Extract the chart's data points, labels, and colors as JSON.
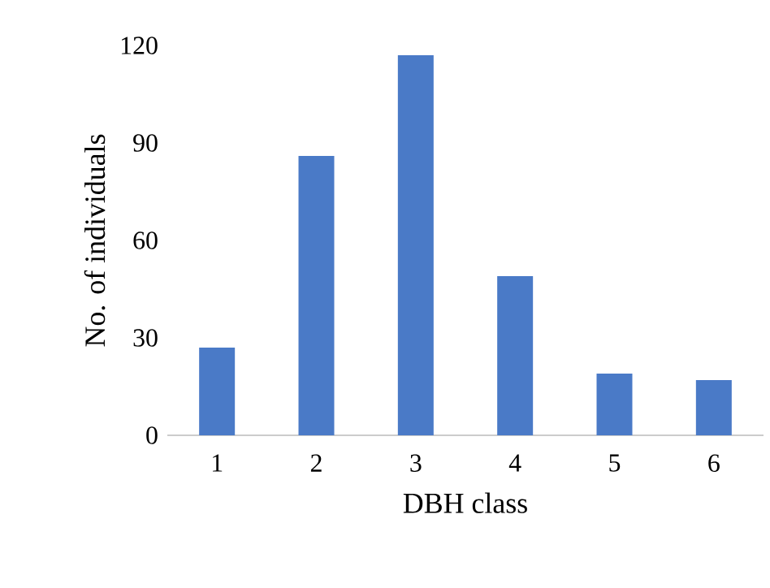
{
  "chart_data": {
    "type": "bar",
    "xlabel": "DBH class",
    "ylabel": "No. of individuals",
    "categories": [
      "1",
      "2",
      "3",
      "4",
      "5",
      "6"
    ],
    "values": [
      27,
      86,
      117,
      49,
      19,
      17
    ],
    "color": "#4a7ac7",
    "ylim": [
      0,
      120
    ],
    "yticks": [
      0,
      30,
      60,
      90,
      120
    ]
  }
}
